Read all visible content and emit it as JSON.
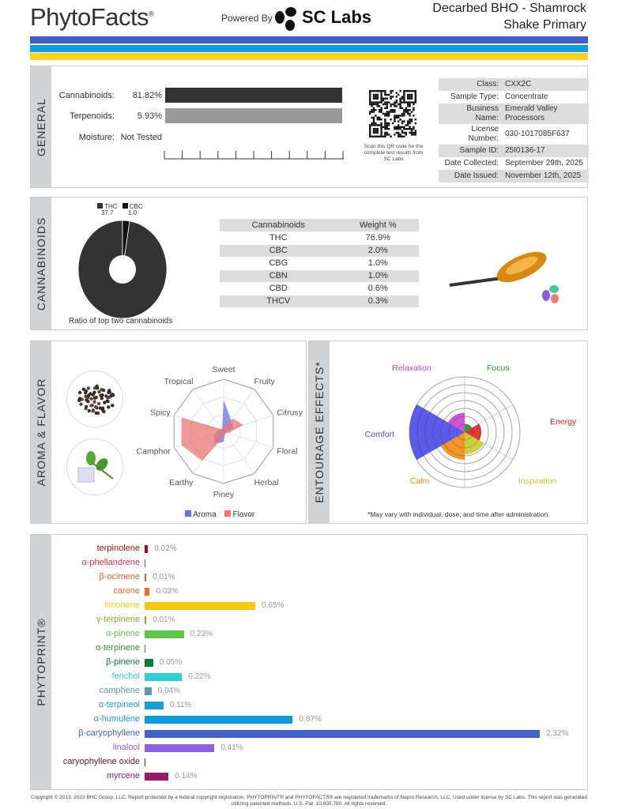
{
  "header": {
    "brand": "PhytoFacts",
    "brand_mark": "®",
    "powered_by": "Powered By",
    "lab": "SC Labs",
    "title_line1": "Decarbed BHO - Shamrock",
    "title_line2": "Shake Primary"
  },
  "colors": {
    "stripe1": "#3f5bcc",
    "stripe2": "#0b9ee0",
    "stripe3": "#fdd21f"
  },
  "general": {
    "tab": "GENERAL",
    "rows": [
      {
        "label": "Cannabinoids:",
        "value": "81.82%",
        "fraction": 0.8182,
        "color": "#333333"
      },
      {
        "label": "Terpenoids:",
        "value": "5.93%",
        "fraction": 0.0593,
        "color": "#999999"
      },
      {
        "label": "Moisture:",
        "value": "Not Tested"
      }
    ],
    "qr_caption": "Scan this QR code for the complete test results from SC Labs",
    "info": [
      {
        "k": "Class:",
        "v": "CXX2C"
      },
      {
        "k": "Sample Type:",
        "v": "Concentrate"
      },
      {
        "k": "Business Name:",
        "v": "Emerald Valley Processors"
      },
      {
        "k": "License Number:",
        "v": "030-1017085F637"
      },
      {
        "k": "Sample ID:",
        "v": "25I0136-17"
      },
      {
        "k": "Date Collected:",
        "v": "September 29th, 2025"
      },
      {
        "k": "Date Issued:",
        "v": "November 12th, 2025"
      }
    ]
  },
  "cannabinoids": {
    "tab": "CANNABINOIDS",
    "caption": "Ratio of top two cannabinoids",
    "donut": [
      {
        "name": "THC",
        "value": "37.7",
        "num": 37.7,
        "color": "#333333"
      },
      {
        "name": "CBC",
        "value": "1.0",
        "num": 1.0,
        "color": "#111111"
      }
    ],
    "table_headers": [
      "Cannabinoids",
      "Weight %"
    ],
    "table": [
      [
        "THC",
        "76.9%"
      ],
      [
        "CBC",
        "2.0%"
      ],
      [
        "CBG",
        "1.0%"
      ],
      [
        "CBN",
        "1.0%"
      ],
      [
        "CBD",
        "0.6%"
      ],
      [
        "THCV",
        "0.3%"
      ]
    ]
  },
  "aroma": {
    "tab": "AROMA & FLAVOR",
    "chart_data": {
      "type": "radar",
      "axes": [
        "Sweet",
        "Fruity",
        "Citrusy",
        "Floral",
        "Herbal",
        "Piney",
        "Earthy",
        "Camphor",
        "Spicy",
        "Tropical"
      ],
      "series": [
        {
          "name": "Aroma",
          "color": "#6b6fe6",
          "values": [
            0.6,
            0.25,
            0.2,
            0.05,
            0.05,
            0.2,
            0.3,
            0.2,
            0.1,
            0.05
          ]
        },
        {
          "name": "Flavor",
          "color": "#e87575",
          "values": [
            0.1,
            0.3,
            0.4,
            0.1,
            0.05,
            0.1,
            0.7,
            0.85,
            0.85,
            0.05
          ]
        }
      ],
      "legend": "bottom"
    }
  },
  "entourage": {
    "tab": "ENTOURAGE EFFECTS*",
    "note": "*May vary with individual, dose, and time after administration.",
    "chart_data": {
      "type": "polar-area",
      "categories": [
        "Focus",
        "Energy",
        "Inspiration",
        "Calm",
        "Comfort",
        "Relaxation"
      ],
      "colors": [
        "#1c9a1c",
        "#e02020",
        "#c9c92a",
        "#f28a10",
        "#4a4ae8",
        "#cc44cc"
      ],
      "values": [
        0.15,
        0.3,
        0.4,
        0.5,
        1.0,
        0.35
      ]
    }
  },
  "phytoprint": {
    "tab": "PHYTOPRINT®",
    "chart_data": {
      "type": "bar",
      "orientation": "horizontal",
      "unit": "%",
      "items": [
        {
          "name": "terpinolene",
          "value": 0.02,
          "label": "0.02%",
          "color": "#a50f15"
        },
        {
          "name": "α-phellandrene",
          "value": 0.0,
          "label": "",
          "color": "#e0303a"
        },
        {
          "name": "β-ocimene",
          "value": 0.01,
          "label": "0.01%",
          "color": "#e8602c"
        },
        {
          "name": "carene",
          "value": 0.03,
          "label": "0.03%",
          "color": "#f36a1e"
        },
        {
          "name": "limonene",
          "value": 0.65,
          "label": "0.65%",
          "color": "#f9c80e"
        },
        {
          "name": "γ-terpinene",
          "value": 0.01,
          "label": "0.01%",
          "color": "#8aac2c"
        },
        {
          "name": "α-pinene",
          "value": 0.23,
          "label": "0.23%",
          "color": "#5cc84a"
        },
        {
          "name": "α-terpinene",
          "value": 0.0,
          "label": "",
          "color": "#2f9a44"
        },
        {
          "name": "β-pinene",
          "value": 0.05,
          "label": "0.05%",
          "color": "#0e7a3c"
        },
        {
          "name": "fenchol",
          "value": 0.22,
          "label": "0.22%",
          "color": "#2fd0d0"
        },
        {
          "name": "camphene",
          "value": 0.04,
          "label": "0.04%",
          "color": "#5a9aa8"
        },
        {
          "name": "α-terpineol",
          "value": 0.11,
          "label": "0.11%",
          "color": "#1a9ed6"
        },
        {
          "name": "α-humulene",
          "value": 0.87,
          "label": "0.87%",
          "color": "#0d9be0"
        },
        {
          "name": "β-caryophyllene",
          "value": 2.32,
          "label": "2.32%",
          "color": "#4660cf"
        },
        {
          "name": "linalool",
          "value": 0.41,
          "label": "0.41%",
          "color": "#8d62e8"
        },
        {
          "name": "caryophyllene oxide",
          "value": 0.0,
          "label": "",
          "color": "#5a1a3a"
        },
        {
          "name": "myrcene",
          "value": 0.14,
          "label": "0.14%",
          "color": "#9a1a6a"
        }
      ]
    }
  },
  "footer": "Copyright © 2013, 2023 BHC Group, LLC. Report protected by a federal copyright registration. PHYTOPRINT® and PHYTOFACTS® are registered trademarks of Napro Research, LLC. Used under license by SC Labs. This report was generated utilizing patented methods. U.S. Pat. 10,830,780. All rights reserved."
}
